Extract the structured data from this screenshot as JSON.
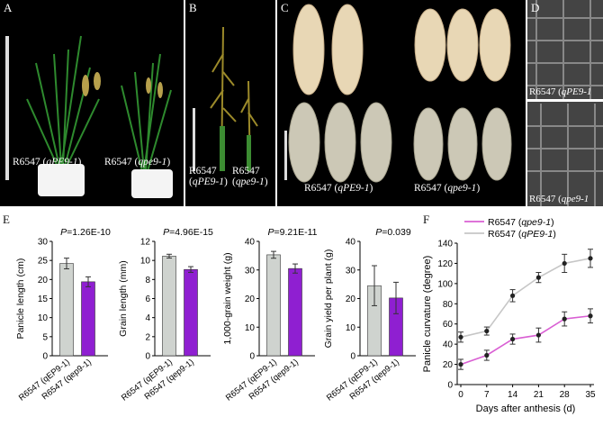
{
  "panels": {
    "A": {
      "label": "A",
      "cap_left_name": "R6547 (",
      "cap_left_gene": "qPE9-1",
      "cap_right_name": "R6547 (",
      "cap_right_gene": "qpe9-1",
      "close": ")"
    },
    "B": {
      "label": "B",
      "cap_left_line1": "R6547",
      "cap_left_line2a": "(",
      "cap_left_gene": "qPE9-1",
      "cap_right_line1": "R6547",
      "cap_right_gene": "qpe9-1",
      "close": ")"
    },
    "C": {
      "label": "C",
      "cap_left_name": "R6547 (",
      "cap_left_gene": "qPE9-1",
      "cap_right_name": "R6547 (",
      "cap_right_gene": "qpe9-1",
      "close": ")"
    },
    "D": {
      "label": "D",
      "cap_top_name": "R6547 (",
      "cap_top_gene": "qPE9-1",
      "cap_bot_name": "R6547 (",
      "cap_bot_gene": "qpe9-1"
    },
    "E": {
      "label": "E"
    },
    "F": {
      "label": "F"
    }
  },
  "colors": {
    "gray_bar": "#cfd3cf",
    "purple_bar": "#8f1fd1",
    "line_purple": "#d95fd3",
    "line_gray": "#c6c6c6"
  },
  "chart_data": [
    {
      "type": "bar",
      "panel": "E1",
      "title": "P=1.26E-10",
      "ylabel": "Panicle length (cm)",
      "categories": [
        "R6547 (qEP9-1)",
        "R6547 (qep9-1)"
      ],
      "values": [
        24.2,
        19.4
      ],
      "errors": [
        1.4,
        1.3
      ],
      "ylim": [
        0,
        30
      ],
      "yticks": [
        0,
        5,
        10,
        15,
        20,
        25,
        30
      ]
    },
    {
      "type": "bar",
      "panel": "E2",
      "title": "P=4.96E-15",
      "ylabel": "Grain length (mm)",
      "categories": [
        "R6547 (qEP9-1)",
        "R6547 (qep9-1)"
      ],
      "values": [
        10.45,
        9.05
      ],
      "errors": [
        0.2,
        0.3
      ],
      "ylim": [
        0,
        12
      ],
      "yticks": [
        0,
        2,
        4,
        6,
        8,
        10,
        12
      ]
    },
    {
      "type": "bar",
      "panel": "E3",
      "title": "P=9.21E-11",
      "ylabel": "1,000-grain weight (g)",
      "categories": [
        "R6547 (qEP9-1)",
        "R6547 (qep9-1)"
      ],
      "values": [
        35.3,
        30.5
      ],
      "errors": [
        1.2,
        1.6
      ],
      "ylim": [
        0,
        40
      ],
      "yticks": [
        0,
        10,
        20,
        30,
        40
      ]
    },
    {
      "type": "bar",
      "panel": "E4",
      "title": "P=0.039",
      "ylabel": "Grain yield per plant (g)",
      "categories": [
        "R6547 (qEP9-1)",
        "R6547 (qep9-1)"
      ],
      "values": [
        24.5,
        20.2
      ],
      "errors": [
        7.0,
        5.5
      ],
      "ylim": [
        0,
        40
      ],
      "yticks": [
        0,
        10,
        20,
        30,
        40
      ]
    },
    {
      "type": "line",
      "panel": "F",
      "xlabel": "Days after anthesis (d)",
      "ylabel": "Panicle curvature (degree)",
      "x": [
        0,
        7,
        14,
        21,
        28,
        35
      ],
      "xlim": [
        0,
        35
      ],
      "ylim": [
        0,
        140
      ],
      "yticks": [
        0,
        20,
        40,
        60,
        80,
        100,
        120,
        140
      ],
      "legend_position": "top-left",
      "series": [
        {
          "name": "R6547 (qpe9-1)",
          "values": [
            20,
            29,
            45,
            49,
            65,
            68
          ],
          "errors": [
            5,
            5,
            5,
            7,
            7,
            7
          ]
        },
        {
          "name": "R6547 (qPE9-1)",
          "values": [
            47,
            53,
            88,
            106,
            120,
            125
          ],
          "errors": [
            5,
            4,
            6,
            5,
            9,
            9
          ]
        }
      ]
    }
  ]
}
